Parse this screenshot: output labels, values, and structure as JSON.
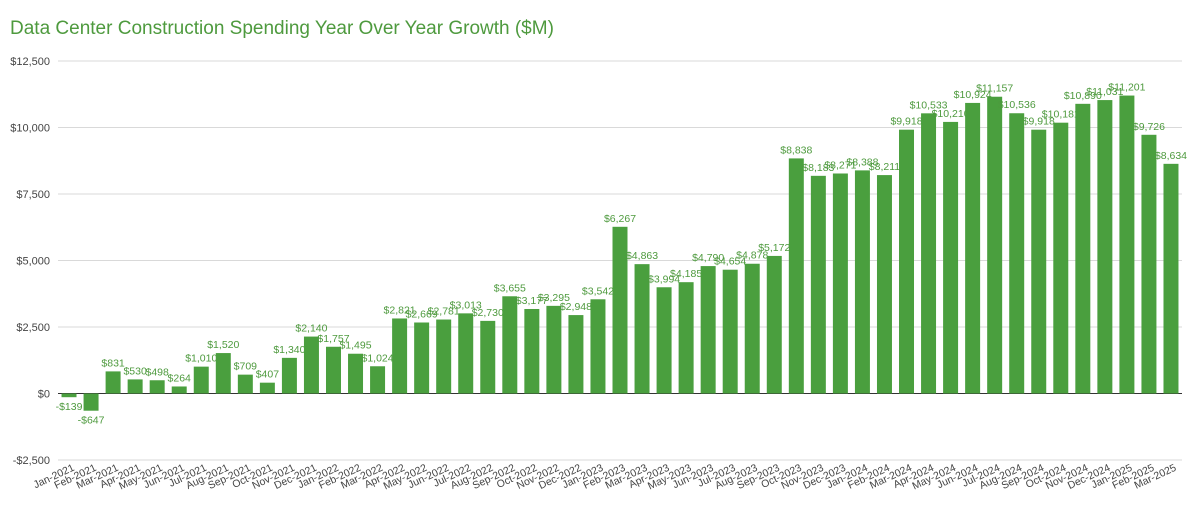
{
  "colors": {
    "bar": "#4a9f3e",
    "label": "#4e9a3e",
    "grid": "#d9d9d9",
    "axis": "#333333"
  },
  "chart_data": {
    "type": "bar",
    "title": "Data Center Construction Spending Year Over Year Growth ($M)",
    "xlabel": "",
    "ylabel": "",
    "ylim": [
      -2500,
      12500
    ],
    "yticks": [
      -2500,
      0,
      2500,
      5000,
      7500,
      10000,
      12500
    ],
    "ytick_labels": [
      "-$2,500",
      "$0",
      "$2,500",
      "$5,000",
      "$7,500",
      "$10,000",
      "$12,500"
    ],
    "grid": true,
    "categories": [
      "Jan-2021",
      "Feb-2021",
      "Mar-2021",
      "Apr-2021",
      "May-2021",
      "Jun-2021",
      "Jul-2021",
      "Aug-2021",
      "Sep-2021",
      "Oct-2021",
      "Nov-2021",
      "Dec-2021",
      "Jan-2022",
      "Feb-2022",
      "Mar-2022",
      "Apr-2022",
      "May-2022",
      "Jun-2022",
      "Jul-2022",
      "Aug-2022",
      "Sep-2022",
      "Oct-2022",
      "Nov-2022",
      "Dec-2022",
      "Jan-2023",
      "Feb-2023",
      "Mar-2023",
      "Apr-2023",
      "May-2023",
      "Jun-2023",
      "Jul-2023",
      "Aug-2023",
      "Sep-2023",
      "Oct-2023",
      "Nov-2023",
      "Dec-2023",
      "Jan-2024",
      "Feb-2024",
      "Mar-2024",
      "Apr-2024",
      "May-2024",
      "Jun-2024",
      "Jul-2024",
      "Aug-2024",
      "Sep-2024",
      "Oct-2024",
      "Nov-2024",
      "Dec-2024",
      "Jan-2025",
      "Feb-2025",
      "Mar-2025"
    ],
    "values": [
      -139,
      -647,
      831,
      530,
      498,
      264,
      1010,
      1520,
      709,
      407,
      1340,
      2140,
      1757,
      1495,
      1024,
      2821,
      2669,
      2781,
      3013,
      2730,
      3655,
      3177,
      3295,
      2948,
      3542,
      6267,
      4863,
      3994,
      4185,
      4790,
      4654,
      4878,
      5172,
      8838,
      8183,
      8271,
      8388,
      8211,
      9918,
      10533,
      10210,
      10924,
      11157,
      10536,
      9918,
      10181,
      10890,
      11031,
      11201,
      9726,
      8634
    ],
    "data_labels": [
      "-$139",
      "-$647",
      "$831",
      "$530",
      "$498",
      "$264",
      "$1,010",
      "$1,520",
      "$709",
      "$407",
      "$1,340",
      "$2,140",
      "$1,757",
      "$1,495",
      "$1,024",
      "$2,821",
      "$2,669",
      "$2,781",
      "$3,013",
      "$2,730",
      "$3,655",
      "$3,177",
      "$3,295",
      "$2,948",
      "$3,542",
      "$6,267",
      "$4,863",
      "$3,994",
      "$4,185",
      "$4,790",
      "$4,654",
      "$4,878",
      "$5,172",
      "$8,838",
      "$8,183",
      "$8,271",
      "$8,388",
      "$8,211",
      "$9,918",
      "$10,533",
      "$10,210",
      "$10,924",
      "$11,157",
      "$10,536",
      "$9,918",
      "$10,181",
      "$10,890",
      "$11,031",
      "$11,201",
      "$9,726",
      "$8,634"
    ]
  }
}
